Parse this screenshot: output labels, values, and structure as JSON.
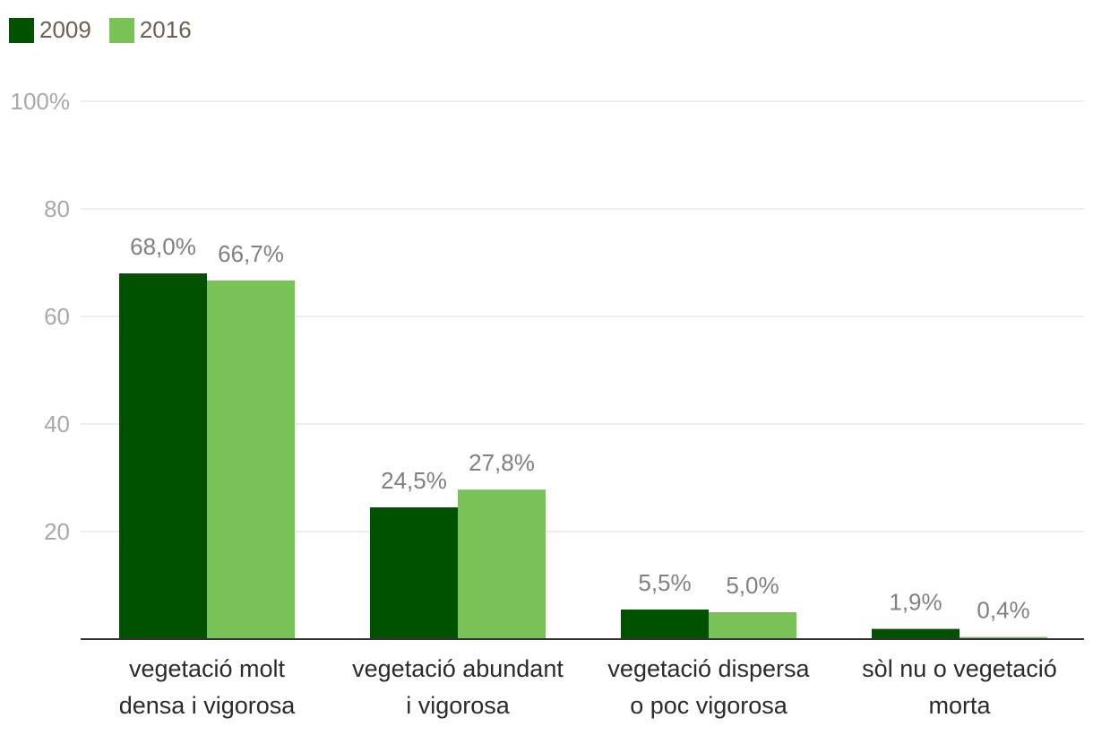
{
  "colors": {
    "series_2009": "#005201",
    "series_2016": "#78c257",
    "grid": "#e6e6e6",
    "axis": "#333333",
    "tick_text": "#a9a9a9",
    "data_label": "#808080",
    "category_text": "#2b2b2b"
  },
  "legend": {
    "items": [
      {
        "label": "2009",
        "color": "#005201"
      },
      {
        "label": "2016",
        "color": "#78c257"
      }
    ]
  },
  "chart_data": {
    "type": "bar",
    "title": "",
    "xlabel": "",
    "ylabel": "",
    "ylim": [
      0,
      100
    ],
    "yticks": [
      20,
      40,
      60,
      80,
      100
    ],
    "ytick_labels": [
      "20",
      "40",
      "60",
      "80",
      "100%"
    ],
    "grid": true,
    "legend_position": "top-left",
    "categories": [
      [
        "vegetació molt",
        "densa i vigorosa"
      ],
      [
        "vegetació abundant",
        "i vigorosa"
      ],
      [
        "vegetació dispersa",
        "o poc vigorosa"
      ],
      [
        "sòl nu o vegetació",
        "morta"
      ]
    ],
    "series": [
      {
        "name": "2009",
        "values": [
          68.0,
          24.5,
          5.5,
          1.9
        ],
        "labels": [
          "68,0%",
          "24,5%",
          "5,5%",
          "1,9%"
        ]
      },
      {
        "name": "2016",
        "values": [
          66.7,
          27.8,
          5.0,
          0.4
        ],
        "labels": [
          "66,7%",
          "27,8%",
          "5,0%",
          "0,4%"
        ]
      }
    ]
  }
}
